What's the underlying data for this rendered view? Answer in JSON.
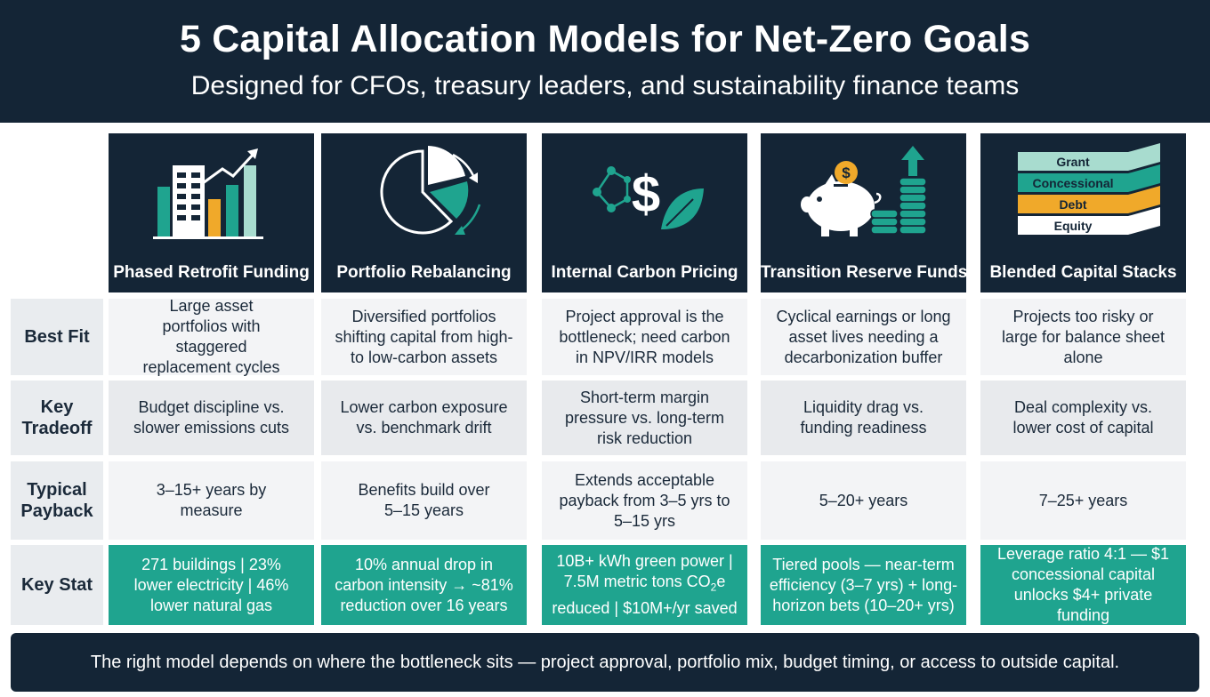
{
  "header": {
    "title": "5 Capital Allocation Models for Net-Zero Goals",
    "subtitle": "Designed for CFOs, treasury leaders, and sustainability finance teams"
  },
  "colors": {
    "navy": "#142536",
    "teal": "#1fa48f",
    "mint": "#a8dccf",
    "amber": "#f0a92a",
    "cell_light": "#f3f4f6",
    "cell_gray": "#e8eaed"
  },
  "models": [
    {
      "name": "Phased Retrofit Funding",
      "icon": "buildings-growth-icon",
      "best_fit": "Large asset portfolios with staggered replacement cycles",
      "tradeoff": "Budget discipline vs. slower emissions cuts",
      "payback": "3–15+ years by measure",
      "stat": "271 buildings | 23% lower electricity | 46% lower natural gas"
    },
    {
      "name": "Portfolio Rebalancing",
      "icon": "pie-rebalance-icon",
      "best_fit": "Diversified portfolios shifting capital from high- to low-carbon assets",
      "tradeoff": "Lower carbon exposure vs. benchmark drift",
      "payback": "Benefits build over 5–15 years",
      "stat": "10% annual drop in carbon intensity → ~81% reduction over 16 years"
    },
    {
      "name": "Internal Carbon Pricing",
      "icon": "dollar-leaf-network-icon",
      "best_fit": "Project approval is the bottleneck; need carbon in NPV/IRR models",
      "tradeoff": "Short-term margin pressure vs. long-term risk reduction",
      "payback": "Extends acceptable payback from 3–5 yrs to 5–15 yrs",
      "stat_line1": "10B+ kWh green power |",
      "stat_line2_a": "7.5M metric tons CO",
      "stat_line2_sub": "2",
      "stat_line2_b": "e",
      "stat_line3": "reduced | $10M+/yr saved"
    },
    {
      "name": "Transition Reserve Funds",
      "icon": "piggy-bank-coins-icon",
      "best_fit": "Cyclical earnings or long asset lives needing a decarbonization buffer",
      "tradeoff": "Liquidity drag vs. funding readiness",
      "payback": "5–20+ years",
      "stat": "Tiered pools — near-term efficiency (3–7 yrs) + long-horizon bets (10–20+ yrs)"
    },
    {
      "name": "Blended Capital Stacks",
      "icon": "capital-stack-icon",
      "stack_layers": [
        "Grant",
        "Concessional",
        "Debt",
        "Equity"
      ],
      "best_fit": "Projects too risky or large for balance sheet alone",
      "tradeoff": "Deal complexity vs. lower cost of capital",
      "payback": "7–25+ years",
      "stat": "Leverage ratio 4:1 — $1 concessional capital unlocks $4+ private funding"
    }
  ],
  "row_labels": {
    "best_fit": "Best Fit",
    "tradeoff": "Key Tradeoff",
    "payback": "Typical Payback",
    "stat": "Key Stat"
  },
  "footer": "The right model depends on where the bottleneck sits — project approval, portfolio mix, budget timing, or access to outside capital."
}
